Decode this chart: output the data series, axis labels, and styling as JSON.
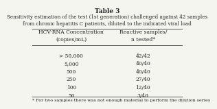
{
  "title": "Table 3",
  "subtitle_line1": "Sensitivity estimation of the test (1st generation) challenged against 42 samples",
  "subtitle_line2": "from chronic hepatitis C patients, diluted to the indicated viral load",
  "col1_header_line1": "HCV-RNA Concentration",
  "col1_header_line2": "(copies/mL)",
  "col2_header_line1": "Reactive samples/",
  "col2_header_line2": "n tested*",
  "rows": [
    [
      "> 50,000",
      "42/42"
    ],
    [
      "5,000",
      "40/40"
    ],
    [
      "500",
      "40/40"
    ],
    [
      "250",
      "27/40"
    ],
    [
      "100",
      "12/40"
    ],
    [
      "50",
      "3/40"
    ]
  ],
  "footnote": "* For two samples there was not enough material to perform the dilution series",
  "background_color": "#f5f5f0",
  "text_color": "#222222",
  "line_color": "#555555"
}
